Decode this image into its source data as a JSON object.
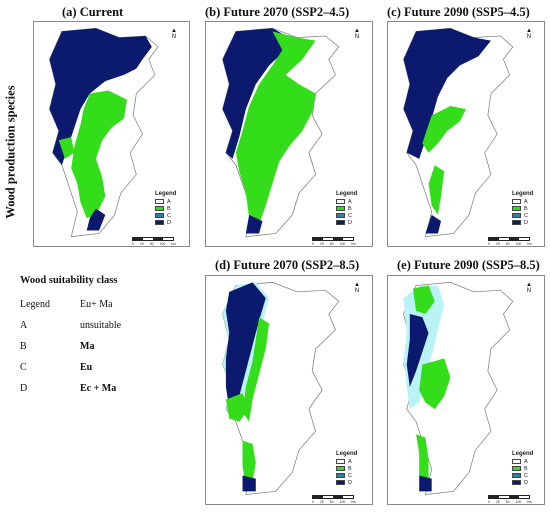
{
  "row_label": "Wood production species",
  "panels": [
    {
      "title": "(a) Current"
    },
    {
      "title": "(b) Future 2070 (SSP2–4.5)"
    },
    {
      "title": "(c) Future 2090 (SSP5–4.5)"
    },
    {
      "title": "(d) Future 2070 (SSP2–8.5)"
    },
    {
      "title": "(e) Future 2090 (SSP5–8.5)"
    }
  ],
  "map_legend": {
    "title": "Legend",
    "classes": [
      {
        "label": "A",
        "color": "#ffffff"
      },
      {
        "label": "B",
        "color": "#33dd1a"
      },
      {
        "label": "C",
        "color": "#2e7fb0"
      },
      {
        "label": "D",
        "color": "#0b1a6e"
      }
    ]
  },
  "scale_ticks": [
    "0",
    "25",
    "50",
    "100",
    "km"
  ],
  "north_label": "N",
  "suitability": {
    "title": "Wood suitability class",
    "header": [
      "Legend",
      "Eu+ Ma"
    ],
    "rows": [
      {
        "cls": "A",
        "desc": "unsuitable"
      },
      {
        "cls": "B",
        "desc": "Ma"
      },
      {
        "cls": "C",
        "desc": "Eu"
      },
      {
        "cls": "D",
        "desc": "Ec + Ma"
      }
    ]
  }
}
